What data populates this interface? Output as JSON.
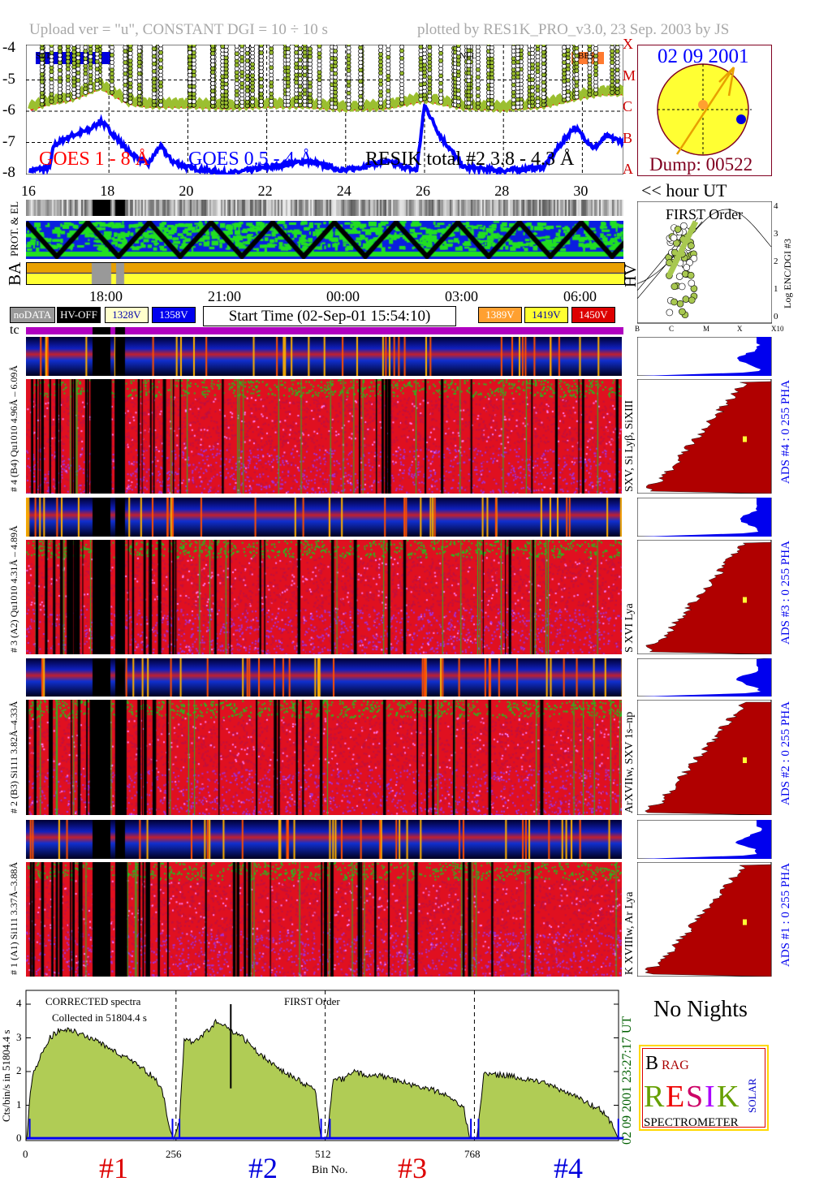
{
  "header": {
    "left": "Upload ver = \"u\", CONSTANT  DGI =  10 ÷  10 s",
    "right": "plotted by RES1K_PRO_v3.0, 23 Sep. 2003 by JS"
  },
  "goes_plot": {
    "y_ticks": [
      "-4",
      "-5",
      "-6",
      "-7",
      "-8"
    ],
    "x_ticks": [
      "16",
      "18",
      "20",
      "22",
      "24",
      "26",
      "28",
      "30"
    ],
    "x_unit": "<< hour UT",
    "class_letters": [
      "X",
      "M",
      "C",
      "B",
      "A"
    ],
    "legend": {
      "goes_long": "GOES 1 - 8 Å",
      "goes_short": "GOES 0.5 - 4 Å",
      "resik": "RESIK total #2  3.8 - 4.3 Å"
    },
    "tags": [
      "SLT",
      "NLL",
      "BE5"
    ],
    "colors": {
      "goes_long": "#ff0000",
      "goes_short": "#0000ff",
      "resik": "#9bbf30"
    }
  },
  "sun_box": {
    "date": "02 09 2001",
    "dump": "Dump: 00522",
    "colors": {
      "disk": "#ffff33",
      "border": "#800020"
    }
  },
  "side_labels": {
    "prot": "PROT. & EL",
    "ba": "BA",
    "hv": "HV",
    "tc": "tc"
  },
  "time_axis": [
    "18:00",
    "21:00",
    "00:00",
    "03:00",
    "06:00"
  ],
  "legend_boxes": [
    {
      "label": "noDATA",
      "bg": "#999999",
      "fg": "#ffffff"
    },
    {
      "label": "HV-OFF",
      "bg": "#000000",
      "fg": "#ffffff"
    },
    {
      "label": "1328V",
      "bg": "#ffffcc",
      "fg": "#0000aa"
    },
    {
      "label": "1358V",
      "bg": "#0000ee",
      "fg": "#ffffff"
    },
    {
      "label": "1389V",
      "bg": "#ffa030",
      "fg": "#ffffff"
    },
    {
      "label": "1419V",
      "bg": "#ffff30",
      "fg": "#0000aa"
    },
    {
      "label": "1450V",
      "bg": "#dd0000",
      "fg": "#ffffff"
    }
  ],
  "start_time": "Start Time (02-Sep-01 15:54:10)",
  "first_order_inset": {
    "title": "FIRST Order",
    "ylabel": "Log ENC/DGI #3",
    "y_ticks": [
      "0",
      "1",
      "2",
      "3",
      "4"
    ],
    "x_ticks": [
      "B",
      "C",
      "M",
      "X",
      "X10"
    ]
  },
  "channels": [
    {
      "left": "# 4 (B4) Qu1010 4.96Å – 6.09Å",
      "right": "SXV, Si Lyβ, SiXIII",
      "ads": "ADS #4 :   0 255  PHA"
    },
    {
      "left": "# 3 (A2) Qu1010 4.31Å – 4.89Å",
      "right": "S XVI Lya",
      "ads": "ADS #3 :   0 255  PHA"
    },
    {
      "left": "# 2 (B3) Si111 3.82Å–4.33Å",
      "right": "ArXVIIw, SXV 1s–np",
      "ads": "ADS #2 :   0 255  PHA"
    },
    {
      "left": "# 1 (A1) Si111 3.37Å–3.88Å",
      "right": "K XVIIIw, Ar Lya",
      "ads": "ADS #1 :   0 255  PHA"
    }
  ],
  "no_nights": "No Nights",
  "logo": {
    "text": "BRAGG RESIK SOLAR SPECTROMETER",
    "line": "SPECTROMETER"
  },
  "chart_data": [
    {
      "type": "line",
      "title": "",
      "xlabel": "<< hour UT",
      "ylabel": "",
      "xlim": [
        16,
        31.2
      ],
      "ylim": [
        -8.1,
        -3.9
      ],
      "grid": true,
      "series": [
        {
          "name": "GOES 1 - 8 Å",
          "x": [
            16,
            16.5,
            17,
            17.8,
            18.5,
            19,
            20,
            21,
            22,
            23,
            24,
            25,
            26,
            27,
            28,
            29,
            30,
            30.5,
            31.1
          ],
          "y": [
            -5.9,
            -5.7,
            -5.6,
            -5.2,
            -5.7,
            -5.8,
            -5.8,
            -5.85,
            -5.8,
            -5.8,
            -5.9,
            -5.85,
            -5.6,
            -5.85,
            -5.9,
            -5.8,
            -5.5,
            -5.4,
            -5.4
          ]
        },
        {
          "name": "GOES 0.5 - 4 Å",
          "x": [
            16,
            16.5,
            16.6,
            17,
            17.5,
            17.8,
            18.5,
            19,
            19.3,
            19.6,
            20,
            21,
            22,
            23,
            24,
            25,
            25.8,
            26,
            26.4,
            27,
            28,
            29,
            29.8,
            30.3,
            30.6,
            31.1
          ],
          "y": [
            -7.9,
            -7.8,
            -7.1,
            -6.8,
            -6.6,
            -6.3,
            -7.3,
            -7.7,
            -7.1,
            -7.6,
            -7.8,
            -8.0,
            -7.8,
            -7.6,
            -7.9,
            -7.6,
            -7.9,
            -5.8,
            -6.8,
            -7.8,
            -7.9,
            -7.8,
            -6.5,
            -7.2,
            -6.8,
            -7.0
          ]
        }
      ]
    },
    {
      "type": "area",
      "title": "",
      "annotations": [
        "CORRECTED spectra",
        "Collected in 51804.4 s",
        "FIRST Order"
      ],
      "xlabel": "Bin No.",
      "ylabel": "Cts/bin/s in 51804.4 s",
      "xlim": [
        0,
        1024
      ],
      "ylim": [
        0,
        4.4
      ],
      "x_ticks": [
        "0",
        "256",
        "512",
        "768"
      ],
      "y_ticks": [
        "0",
        "1",
        "2",
        "3",
        "4"
      ],
      "channel_labels": [
        "#1",
        "#2",
        "#3",
        "#4"
      ],
      "timestamp": "02 09 2001   23:27:17 UT",
      "bins": [
        0,
        5,
        12,
        25,
        40,
        60,
        80,
        110,
        150,
        190,
        220,
        232,
        245,
        252,
        262,
        270,
        290,
        310,
        325,
        350,
        370,
        400,
        430,
        460,
        480,
        495,
        505,
        515,
        525,
        545,
        560,
        580,
        600,
        640,
        690,
        730,
        750,
        760,
        772,
        785,
        800,
        820,
        850,
        900,
        950,
        990,
        1005,
        1015
      ],
      "values": [
        0,
        1.2,
        2.0,
        2.5,
        3.0,
        3.3,
        3.2,
        3.0,
        2.6,
        2.2,
        1.8,
        1.5,
        0.3,
        0,
        0.5,
        2.9,
        2.9,
        3.2,
        3.5,
        3.2,
        3.0,
        2.5,
        2.1,
        1.8,
        1.6,
        1.4,
        0,
        0,
        1.7,
        1.8,
        2.0,
        1.9,
        1.9,
        1.7,
        1.5,
        1.2,
        0.9,
        0,
        0,
        2.0,
        1.9,
        1.9,
        1.8,
        1.6,
        1.2,
        0.8,
        0.4,
        0
      ]
    }
  ]
}
